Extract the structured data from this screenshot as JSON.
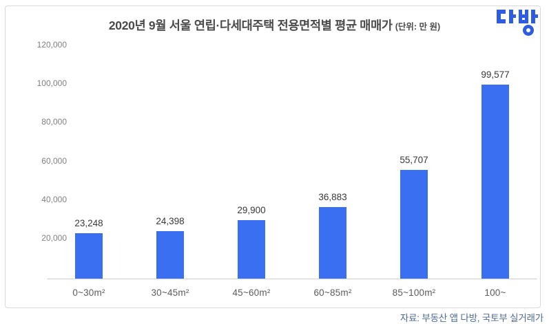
{
  "header": {
    "title": "2020년 9월 서울 연립·다세대주택 전용면적별 평균 매매가",
    "unit_note": "(단위: 만 원)",
    "logo_text": "다방"
  },
  "chart_data": {
    "type": "bar",
    "title": "2020년 9월 서울 연립·다세대주택 전용면적별 평균 매매가",
    "unit": "만 원",
    "categories": [
      "0~30m²",
      "30~45m²",
      "45~60m²",
      "60~85m²",
      "85~100m²",
      "100~"
    ],
    "values": [
      23248,
      24398,
      29900,
      36883,
      55707,
      99577
    ],
    "value_labels": [
      "23,248",
      "24,398",
      "29,900",
      "36,883",
      "55,707",
      "99,577"
    ],
    "y_ticks": [
      "120,000",
      "100,000",
      "80,000",
      "60,000",
      "40,000",
      "20,000",
      "-"
    ],
    "ylim": [
      0,
      120000
    ],
    "grid": false,
    "legend": "none",
    "xlabel": "",
    "ylabel": ""
  },
  "colors": {
    "bar": "#3a6ff2",
    "brand_logo": "#2e5ce2",
    "footer_text": "#4e6a96",
    "border": "#d8d8d8"
  },
  "footer": {
    "source": "자료: 부동산 앱 다방, 국토부 실거래가"
  }
}
